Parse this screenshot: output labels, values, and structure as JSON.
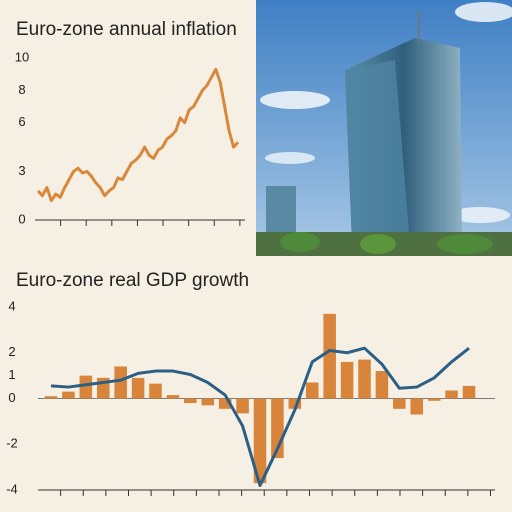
{
  "chart_data": [
    {
      "type": "line",
      "title": "Euro-zone annual inflation",
      "color": "#d9883a",
      "values": [
        1.8,
        1.5,
        2.0,
        1.2,
        1.6,
        1.4,
        2.0,
        2.5,
        3.0,
        3.2,
        2.9,
        3.0,
        2.7,
        2.3,
        2.0,
        1.5,
        1.8,
        2.0,
        2.6,
        2.5,
        3.0,
        3.5,
        3.7,
        4.0,
        4.5,
        4.0,
        3.8,
        4.3,
        4.5,
        5.0,
        5.2,
        5.5,
        6.3,
        6.0,
        6.8,
        7.0,
        7.5,
        8.0,
        8.3,
        8.8,
        9.3,
        8.5,
        7.0,
        5.5,
        4.5,
        4.8
      ],
      "ylim": [
        0,
        10
      ],
      "yticks": [
        0,
        3,
        6,
        8,
        10
      ]
    },
    {
      "type": "bar",
      "title": "Euro-zone real GDP growth",
      "series": [
        {
          "type": "bar",
          "color": "#d8843a",
          "values": [
            0.1,
            0.3,
            1.0,
            0.9,
            1.4,
            0.9,
            0.65,
            0.15,
            -0.2,
            -0.3,
            -0.45,
            -0.65,
            -3.7,
            -2.6,
            -0.45,
            0.7,
            3.7,
            1.6,
            1.7,
            1.2,
            -0.45,
            -0.7,
            -0.1,
            0.35,
            0.55
          ]
        },
        {
          "type": "line",
          "color": "#2c5f86",
          "values": [
            0.55,
            0.5,
            0.6,
            0.7,
            0.8,
            1.1,
            1.2,
            1.2,
            1.05,
            0.7,
            0.15,
            -1.2,
            -3.8,
            -2.2,
            -0.5,
            1.6,
            2.1,
            2.0,
            2.2,
            1.5,
            0.45,
            0.5,
            0.9,
            1.6,
            2.2
          ]
        }
      ],
      "ylim": [
        -4,
        4
      ],
      "yticks": [
        -4,
        -2,
        0,
        1,
        2,
        4
      ]
    }
  ]
}
